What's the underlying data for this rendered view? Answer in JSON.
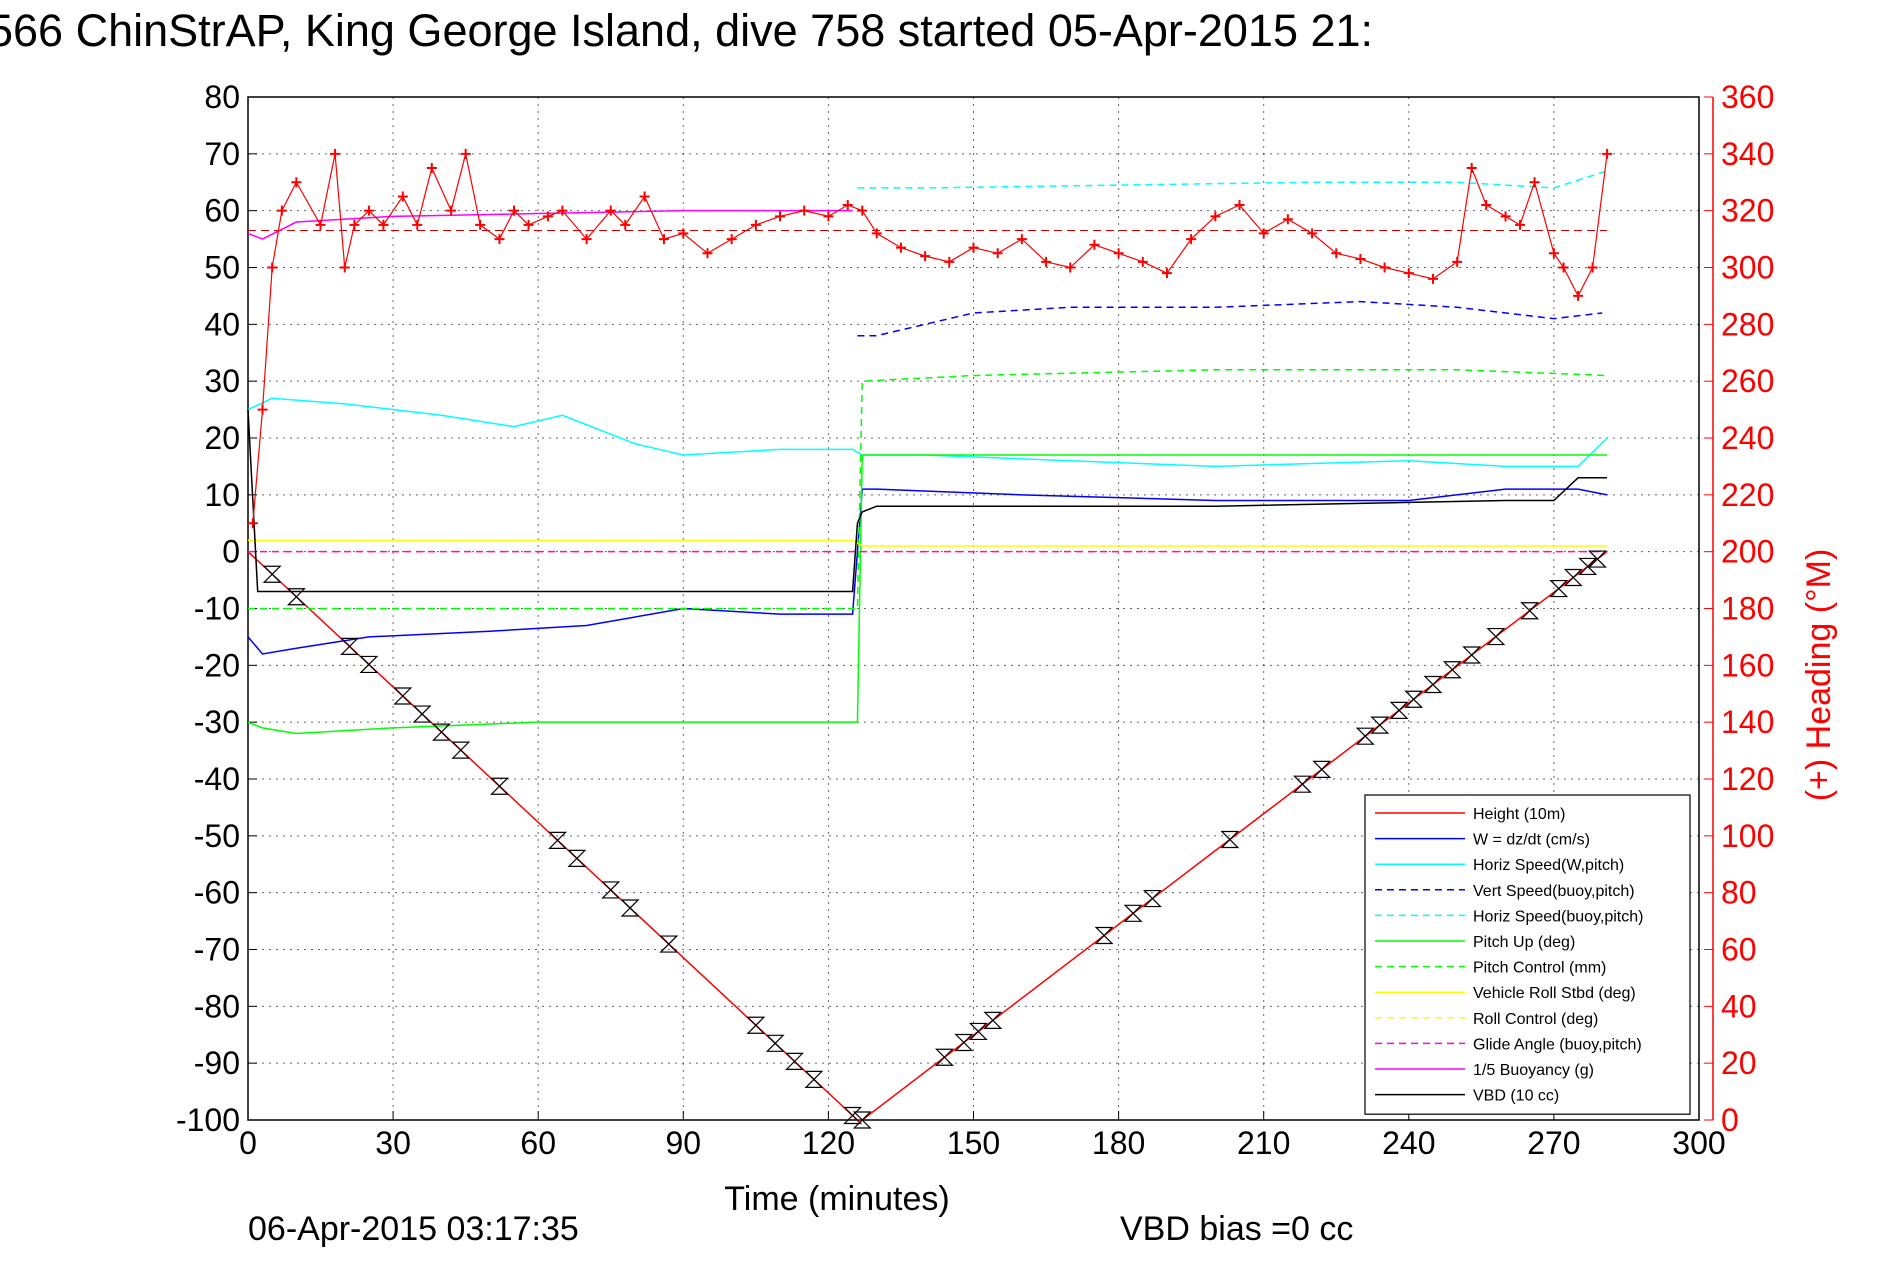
{
  "chart_data": {
    "type": "line",
    "title": "566 ChinStrAP, King George Island, dive 758 started 05-Apr-2015 21:",
    "xlabel": "Time (minutes)",
    "ylabel_right": "(+) Heading (°M)",
    "footer_left": "06-Apr-2015 03:17:35",
    "footer_right": "VBD bias =0 cc",
    "xlim": [
      0,
      300
    ],
    "ylim": [
      -100,
      80
    ],
    "ylim_right": [
      0,
      360
    ],
    "x_ticks": [
      0,
      30,
      60,
      90,
      120,
      150,
      180,
      210,
      240,
      270,
      300
    ],
    "y_ticks": [
      -100,
      -90,
      -80,
      -70,
      -60,
      -50,
      -40,
      -30,
      -20,
      -10,
      0,
      10,
      20,
      30,
      40,
      50,
      60,
      70,
      80
    ],
    "y_ticks_right": [
      0,
      20,
      40,
      60,
      80,
      100,
      120,
      140,
      160,
      180,
      200,
      220,
      240,
      260,
      280,
      300,
      320,
      340,
      360
    ],
    "grid": true,
    "legend_position": "bottom-right",
    "legend": [
      {
        "label": "Height (10m)",
        "color": "#ff0000",
        "dash": "solid"
      },
      {
        "label": "W = dz/dt (cm/s)",
        "color": "#0000ff",
        "dash": "solid"
      },
      {
        "label": "Horiz Speed(W,pitch)",
        "color": "#00ffff",
        "dash": "solid"
      },
      {
        "label": "Vert Speed(buoy,pitch)",
        "color": "#0000ff",
        "dash": "dashed"
      },
      {
        "label": "Horiz Speed(buoy,pitch)",
        "color": "#00ffff",
        "dash": "dashed"
      },
      {
        "label": "Pitch Up (deg)",
        "color": "#00ff00",
        "dash": "solid"
      },
      {
        "label": "Pitch Control (mm)",
        "color": "#00ff00",
        "dash": "dashed"
      },
      {
        "label": "Vehicle Roll Stbd (deg)",
        "color": "#ffff00",
        "dash": "solid"
      },
      {
        "label": "Roll Control (deg)",
        "color": "#ffff00",
        "dash": "dashed"
      },
      {
        "label": "Glide Angle (buoy,pitch)",
        "color": "#ff00ff",
        "dash": "dashed"
      },
      {
        "label": "1/5 Buoyancy (g)",
        "color": "#ff00ff",
        "dash": "solid"
      },
      {
        "label": "VBD (10 cc)",
        "color": "#000000",
        "dash": "solid"
      }
    ],
    "series": [
      {
        "name": "Height (10m)",
        "color": "#ff0000",
        "x": [
          0,
          126,
          127,
          281
        ],
        "y": [
          0,
          -100,
          -100,
          0
        ]
      },
      {
        "name": "W = dz/dt (cm/s)",
        "color": "#0000ff",
        "x": [
          0,
          3,
          10,
          25,
          50,
          70,
          90,
          110,
          125,
          127,
          130,
          160,
          200,
          240,
          260,
          275,
          281
        ],
        "y": [
          -15,
          -18,
          -17,
          -15,
          -14,
          -13,
          -10,
          -11,
          -11,
          11,
          11,
          10,
          9,
          9,
          11,
          11,
          10
        ]
      },
      {
        "name": "Horiz Speed(W,pitch)",
        "color": "#00ffff",
        "x": [
          0,
          5,
          20,
          40,
          55,
          65,
          80,
          90,
          110,
          125,
          127,
          140,
          170,
          200,
          240,
          260,
          275,
          281
        ],
        "y": [
          25,
          27,
          26,
          24,
          22,
          24,
          19,
          17,
          18,
          18,
          17,
          17,
          16,
          15,
          16,
          15,
          15,
          20
        ]
      },
      {
        "name": "Vert Speed(buoy,pitch)",
        "color": "#0000ff",
        "x": [
          126,
          130,
          150,
          170,
          200,
          230,
          250,
          270,
          280
        ],
        "y": [
          38,
          38,
          42,
          43,
          43,
          44,
          43,
          41,
          42
        ]
      },
      {
        "name": "Horiz Speed(buoy,pitch)",
        "color": "#00ffff",
        "x": [
          126,
          140,
          180,
          220,
          250,
          270,
          281
        ],
        "y": [
          64,
          64,
          64.5,
          65,
          65,
          64,
          67
        ]
      },
      {
        "name": "Pitch Up (deg)",
        "color": "#00ff00",
        "x": [
          0,
          3,
          10,
          30,
          60,
          90,
          110,
          125,
          126,
          127,
          130,
          160,
          200,
          240,
          270,
          281
        ],
        "y": [
          -30,
          -31,
          -32,
          -31,
          -30,
          -30,
          -30,
          -30,
          -30,
          17,
          17,
          17,
          17,
          17,
          17,
          17
        ]
      },
      {
        "name": "Pitch Control (mm)",
        "color": "#00ff00",
        "x": [
          0,
          125,
          126,
          127,
          150,
          200,
          250,
          281
        ],
        "y": [
          -10,
          -10,
          -10,
          30,
          31,
          32,
          32,
          31
        ]
      },
      {
        "name": "Vehicle Roll Stbd (deg)",
        "color": "#ffff00",
        "x": [
          0,
          5,
          30,
          60,
          90,
          125,
          127,
          160,
          200,
          240,
          281
        ],
        "y": [
          2,
          2,
          2,
          2,
          2,
          2,
          1,
          1,
          1,
          1,
          1
        ]
      },
      {
        "name": "Roll Control (deg)",
        "color": "#ffff00",
        "x": [
          0,
          125,
          127,
          281
        ],
        "y": [
          0,
          0,
          0,
          0
        ]
      },
      {
        "name": "Glide Angle (buoy,pitch)",
        "color": "#ff00ff",
        "x": [
          0,
          125,
          126,
          127,
          281
        ],
        "y": [
          0,
          0,
          0,
          0,
          0
        ]
      },
      {
        "name": "1/5 Buoyancy (g)",
        "color": "#ff00ff",
        "x": [
          0,
          3,
          10,
          30,
          60,
          90,
          125
        ],
        "y": [
          56,
          55,
          58,
          59,
          59.5,
          60,
          60
        ]
      },
      {
        "name": "VBD (10 cc)",
        "color": "#000000",
        "x": [
          0,
          2,
          60,
          124,
          125,
          126,
          127,
          130,
          200,
          260,
          270,
          275,
          281
        ],
        "y": [
          25,
          -7,
          -7,
          -7,
          -7,
          5,
          7,
          8,
          8,
          9,
          9,
          13,
          13
        ]
      },
      {
        "name": "Heading",
        "color": "#ff0000",
        "axis": "right",
        "x": [
          1,
          3,
          5,
          7,
          10,
          15,
          18,
          20,
          22,
          25,
          28,
          32,
          35,
          38,
          42,
          45,
          48,
          52,
          55,
          58,
          62,
          65,
          70,
          75,
          78,
          82,
          86,
          90,
          95,
          100,
          105,
          110,
          115,
          120,
          124,
          127,
          130,
          135,
          140,
          145,
          150,
          155,
          160,
          165,
          170,
          175,
          180,
          185,
          190,
          195,
          200,
          205,
          210,
          215,
          220,
          225,
          230,
          235,
          240,
          245,
          250,
          253,
          256,
          260,
          263,
          266,
          270,
          272,
          275,
          278,
          281
        ],
        "y": [
          210,
          250,
          300,
          320,
          330,
          315,
          340,
          300,
          315,
          320,
          315,
          325,
          315,
          335,
          320,
          340,
          315,
          310,
          320,
          315,
          318,
          320,
          310,
          320,
          315,
          325,
          310,
          312,
          305,
          310,
          315,
          318,
          320,
          318,
          322,
          320,
          312,
          307,
          304,
          302,
          307,
          305,
          310,
          302,
          300,
          308,
          305,
          302,
          298,
          310,
          318,
          322,
          312,
          317,
          312,
          305,
          303,
          300,
          298,
          296,
          302,
          335,
          322,
          318,
          315,
          330,
          305,
          300,
          290,
          300,
          340
        ]
      }
    ]
  }
}
